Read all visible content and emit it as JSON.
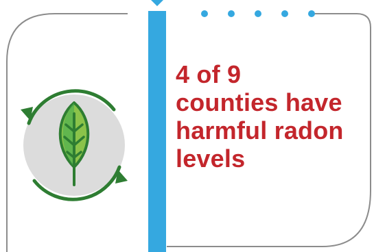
{
  "headline": {
    "line1": "4 of 9",
    "line2": "counties have",
    "line3": "harmful radon",
    "line4": "levels"
  },
  "icons": {
    "main": "leaf-recycle-icon",
    "divider": "timeline-bar",
    "marker": "chevron-down-icon",
    "dots": "dotted-connector"
  },
  "colors": {
    "accent_blue": "#35a8e0",
    "headline_red": "#c3262c",
    "leaf_dark": "#2e7d32",
    "leaf_light": "#8bc34a",
    "circle_bg": "#dcdcdc",
    "frame_gray": "#8c8c8c"
  }
}
